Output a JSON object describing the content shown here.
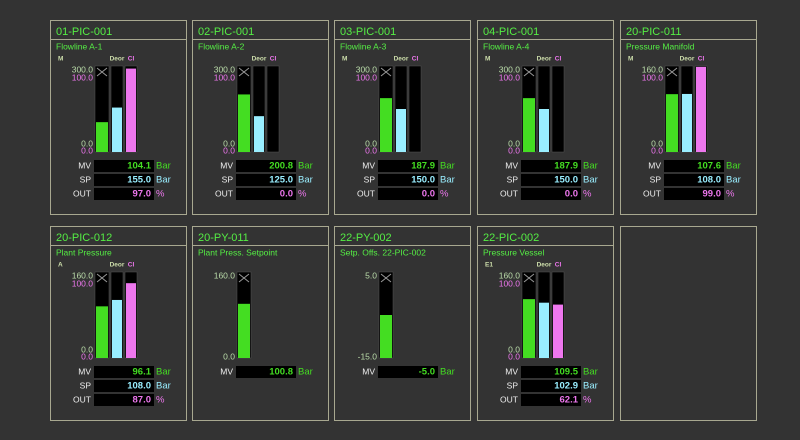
{
  "panels": [
    {
      "tag": "01-PIC-001",
      "description": "Flowline A-1",
      "headers": [
        "M",
        "Deor",
        "CI"
      ],
      "pv_scale": {
        "max": {
          "value": 300,
          "label": "300.0"
        },
        "min": {
          "value": 0,
          "label": "0.0"
        }
      },
      "out_scale": {
        "max": {
          "value": 100,
          "label": "100.0"
        },
        "min": {
          "value": 0,
          "label": "0.0"
        }
      },
      "readouts": [
        {
          "label": "MV",
          "value": 104.1,
          "unit": "Bar"
        },
        {
          "label": "SP",
          "value": {
            "value": 155,
            "label": "155.0"
          },
          "unit": "Bar"
        },
        {
          "label": "OUT",
          "value": {
            "value": 97,
            "label": "97.0"
          },
          "unit": "%"
        }
      ]
    },
    {
      "tag": "02-PIC-001",
      "description": "Flowline A-2",
      "headers": [
        null,
        "Deor",
        "CI"
      ],
      "pv_scale": {
        "max": {
          "value": 300,
          "label": "300.0"
        },
        "min": {
          "value": 0,
          "label": "0.0"
        }
      },
      "out_scale": {
        "max": {
          "value": 100,
          "label": "100.0"
        },
        "min": {
          "value": 0,
          "label": "0.0"
        }
      },
      "readouts": [
        {
          "label": "MV",
          "value": 200.8,
          "unit": "Bar"
        },
        {
          "label": "SP",
          "value": {
            "value": 125,
            "label": "125.0"
          },
          "unit": "Bar"
        },
        {
          "label": "OUT",
          "value": {
            "value": 0,
            "label": "0.0"
          },
          "unit": "%"
        }
      ]
    },
    {
      "tag": "03-PIC-001",
      "description": "Flowline A-3",
      "headers": [
        "M",
        "Deor",
        "CI"
      ],
      "pv_scale": {
        "max": {
          "value": 300,
          "label": "300.0"
        },
        "min": {
          "value": 0,
          "label": "0.0"
        }
      },
      "out_scale": {
        "max": {
          "value": 100,
          "label": "100.0"
        },
        "min": {
          "value": 0,
          "label": "0.0"
        }
      },
      "readouts": [
        {
          "label": "MV",
          "value": 187.9,
          "unit": "Bar"
        },
        {
          "label": "SP",
          "value": {
            "value": 150,
            "label": "150.0"
          },
          "unit": "Bar"
        },
        {
          "label": "OUT",
          "value": {
            "value": 0,
            "label": "0.0"
          },
          "unit": "%"
        }
      ]
    },
    {
      "tag": "04-PIC-001",
      "description": "Flowline A-4",
      "headers": [
        "M",
        "Deor",
        "CI"
      ],
      "pv_scale": {
        "max": {
          "value": 300,
          "label": "300.0"
        },
        "min": {
          "value": 0,
          "label": "0.0"
        }
      },
      "out_scale": {
        "max": {
          "value": 100,
          "label": "100.0"
        },
        "min": {
          "value": 0,
          "label": "0.0"
        }
      },
      "readouts": [
        {
          "label": "MV",
          "value": 187.9,
          "unit": "Bar"
        },
        {
          "label": "SP",
          "value": {
            "value": 150,
            "label": "150.0"
          },
          "unit": "Bar"
        },
        {
          "label": "OUT",
          "value": {
            "value": 0,
            "label": "0.0"
          },
          "unit": "%"
        }
      ]
    },
    {
      "tag": "20-PIC-011",
      "description": "Pressure Manifold",
      "headers": [
        "M",
        "Deor",
        "CI"
      ],
      "pv_scale": {
        "max": {
          "value": 160,
          "label": "160.0"
        },
        "min": {
          "value": 0,
          "label": "0.0"
        }
      },
      "out_scale": {
        "max": {
          "value": 100,
          "label": "100.0"
        },
        "min": {
          "value": 0,
          "label": "0.0"
        }
      },
      "readouts": [
        {
          "label": "MV",
          "value": 107.6,
          "unit": "Bar"
        },
        {
          "label": "SP",
          "value": {
            "value": 108,
            "label": "108.0"
          },
          "unit": "Bar"
        },
        {
          "label": "OUT",
          "value": {
            "value": 99,
            "label": "99.0"
          },
          "unit": "%"
        }
      ]
    },
    {
      "tag": "20-PIC-012",
      "description": "Plant Pressure",
      "headers": [
        "A",
        "Deor",
        "CI"
      ],
      "pv_scale": {
        "max": {
          "value": 160,
          "label": "160.0"
        },
        "min": {
          "value": 0,
          "label": "0.0"
        }
      },
      "out_scale": {
        "max": {
          "value": 100,
          "label": "100.0"
        },
        "min": {
          "value": 0,
          "label": "0.0"
        }
      },
      "readouts": [
        {
          "label": "MV",
          "value": 96.1,
          "unit": "Bar"
        },
        {
          "label": "SP",
          "value": {
            "value": 108,
            "label": "108.0"
          },
          "unit": "Bar"
        },
        {
          "label": "OUT",
          "value": {
            "value": 87,
            "label": "87.0"
          },
          "unit": "%"
        }
      ]
    },
    {
      "tag": "20-PY-011",
      "description": "Plant Press. Setpoint",
      "pv_scale": {
        "max": {
          "value": 160,
          "label": "160.0"
        },
        "min": {
          "value": 0,
          "label": "0.0"
        }
      },
      "readouts": [
        {
          "label": "MV",
          "value": 100.8,
          "unit": "Bar"
        }
      ]
    },
    {
      "tag": "22-PY-002",
      "description": "Setp. Offs. 22-PIC-002",
      "pv_scale": {
        "max": {
          "value": 5,
          "label": "5.0"
        },
        "min": {
          "value": -15,
          "label": "-15.0"
        }
      },
      "readouts": [
        {
          "label": "MV",
          "value": {
            "value": -5,
            "label": "-5.0"
          },
          "unit": "Bar"
        }
      ]
    },
    {
      "tag": "22-PIC-002",
      "description": "Pressure Vessel",
      "headers": [
        "E1",
        "Deor",
        "CI"
      ],
      "pv_scale": {
        "max": {
          "value": 160,
          "label": "160.0"
        },
        "min": {
          "value": 0,
          "label": "0.0"
        }
      },
      "out_scale": {
        "max": {
          "value": 100,
          "label": "100.0"
        },
        "min": {
          "value": 0,
          "label": "0.0"
        }
      },
      "readouts": [
        {
          "label": "MV",
          "value": 109.5,
          "unit": "Bar"
        },
        {
          "label": "SP",
          "value": {
            "value": 102.9,
            "label": "102.9"
          },
          "unit": "Bar"
        },
        {
          "label": "OUT",
          "value": {
            "value": 62.1,
            "label": "62.1"
          },
          "unit": "%"
        }
      ]
    }
  ]
}
